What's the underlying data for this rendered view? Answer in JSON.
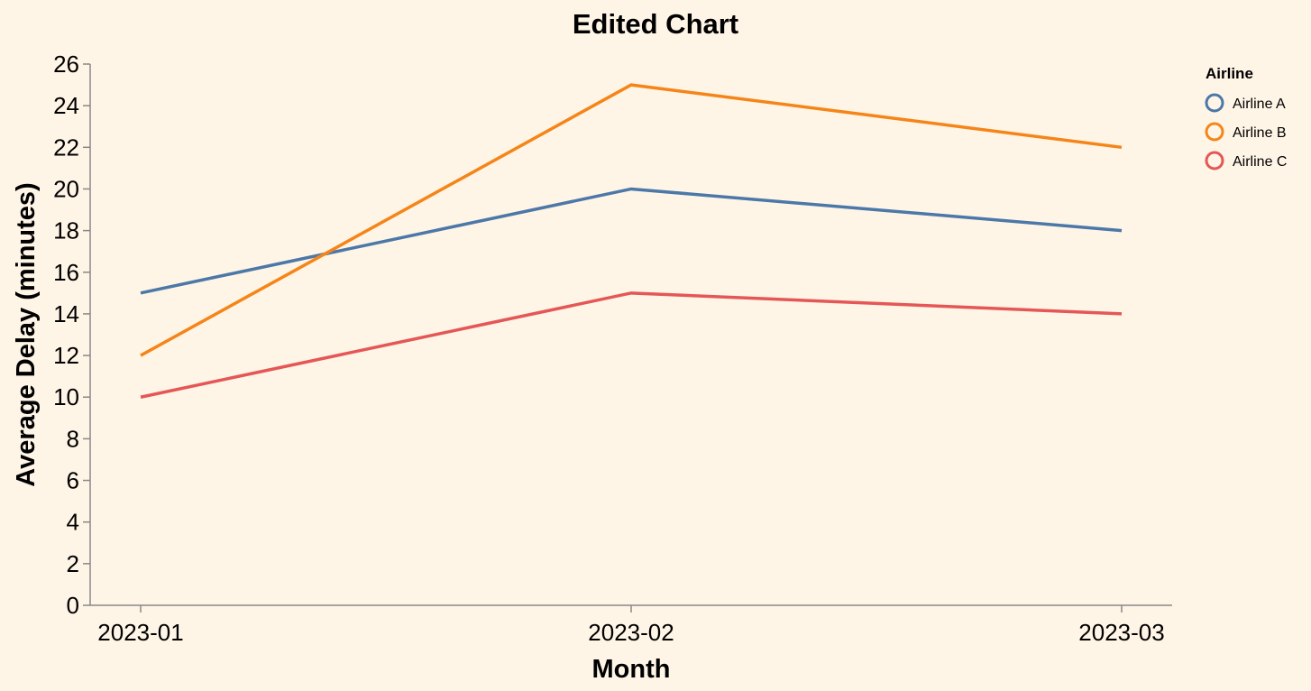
{
  "chart_data": {
    "type": "line",
    "title": "Edited Chart",
    "xlabel": "Month",
    "ylabel": "Average Delay (minutes)",
    "categories": [
      "2023-01",
      "2023-02",
      "2023-03"
    ],
    "ylim": [
      0,
      26
    ],
    "yticks": [
      0,
      2,
      4,
      6,
      8,
      10,
      12,
      14,
      16,
      18,
      20,
      22,
      24,
      26
    ],
    "grid": false,
    "legend": {
      "title": "Airline",
      "placement": "top-right"
    },
    "series": [
      {
        "name": "Airline A",
        "color": "#4c78a8",
        "values": [
          15,
          20,
          18
        ]
      },
      {
        "name": "Airline B",
        "color": "#f58518",
        "values": [
          12,
          25,
          22
        ]
      },
      {
        "name": "Airline C",
        "color": "#e45756",
        "values": [
          10,
          15,
          14
        ]
      }
    ]
  }
}
